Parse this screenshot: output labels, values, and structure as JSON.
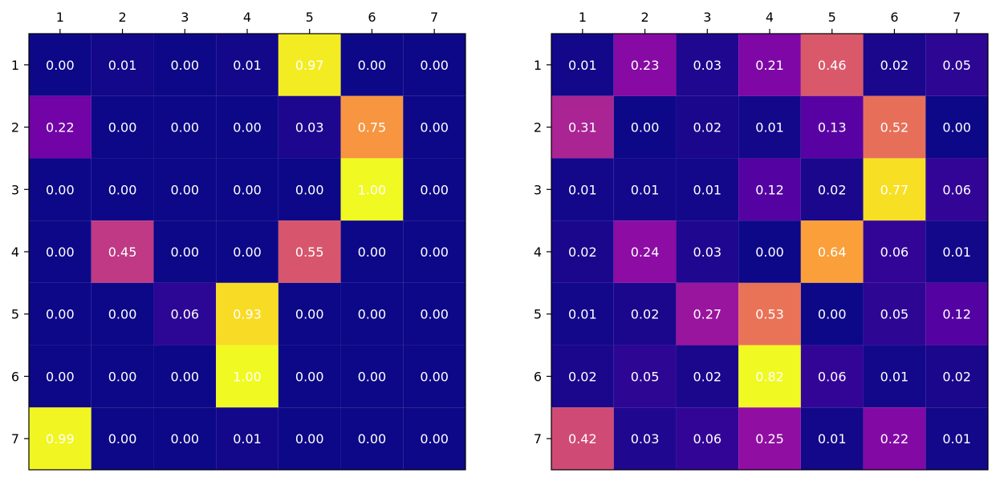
{
  "chart_data": [
    {
      "type": "heatmap",
      "title": "",
      "x_ticks": [
        "1",
        "2",
        "3",
        "4",
        "5",
        "6",
        "7"
      ],
      "y_ticks": [
        "1",
        "2",
        "3",
        "4",
        "5",
        "6",
        "7"
      ],
      "colormap": "plasma",
      "vmin": 0.0,
      "vmax": 1.0,
      "values": [
        [
          0.0,
          0.01,
          0.0,
          0.01,
          0.97,
          0.0,
          0.0
        ],
        [
          0.22,
          0.0,
          0.0,
          0.0,
          0.03,
          0.75,
          0.0
        ],
        [
          0.0,
          0.0,
          0.0,
          0.0,
          0.0,
          1.0,
          0.0
        ],
        [
          0.0,
          0.45,
          0.0,
          0.0,
          0.55,
          0.0,
          0.0
        ],
        [
          0.0,
          0.0,
          0.06,
          0.93,
          0.0,
          0.0,
          0.0
        ],
        [
          0.0,
          0.0,
          0.0,
          1.0,
          0.0,
          0.0,
          0.0
        ],
        [
          0.99,
          0.0,
          0.0,
          0.01,
          0.0,
          0.0,
          0.0
        ]
      ]
    },
    {
      "type": "heatmap",
      "title": "",
      "x_ticks": [
        "1",
        "2",
        "3",
        "4",
        "5",
        "6",
        "7"
      ],
      "y_ticks": [
        "1",
        "2",
        "3",
        "4",
        "5",
        "6",
        "7"
      ],
      "colormap": "plasma",
      "vmin": 0.0,
      "vmax": 0.82,
      "values": [
        [
          0.01,
          0.23,
          0.03,
          0.21,
          0.46,
          0.02,
          0.05
        ],
        [
          0.31,
          0.0,
          0.02,
          0.01,
          0.13,
          0.52,
          0.0
        ],
        [
          0.01,
          0.01,
          0.01,
          0.12,
          0.02,
          0.77,
          0.06
        ],
        [
          0.02,
          0.24,
          0.03,
          0.0,
          0.64,
          0.06,
          0.01
        ],
        [
          0.01,
          0.02,
          0.27,
          0.53,
          0.0,
          0.05,
          0.12
        ],
        [
          0.02,
          0.05,
          0.02,
          0.82,
          0.06,
          0.01,
          0.02
        ],
        [
          0.42,
          0.03,
          0.06,
          0.25,
          0.01,
          0.22,
          0.01
        ]
      ]
    }
  ]
}
